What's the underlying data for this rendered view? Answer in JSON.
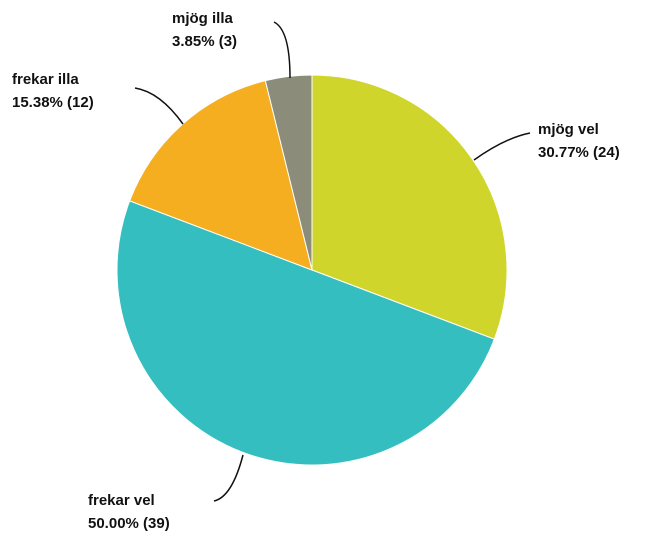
{
  "chart_data": {
    "type": "pie",
    "categories": [
      "mjög vel",
      "frekar vel",
      "frekar illa",
      "mjög illa"
    ],
    "values": [
      24,
      39,
      12,
      3
    ],
    "value_labels": [
      "30.77% (24)",
      "50.00% (39)",
      "15.38% (12)",
      "3.85% (3)"
    ],
    "colors": [
      "#cfd52a",
      "#35bec0",
      "#f5ae20",
      "#8c8c7a"
    ]
  }
}
